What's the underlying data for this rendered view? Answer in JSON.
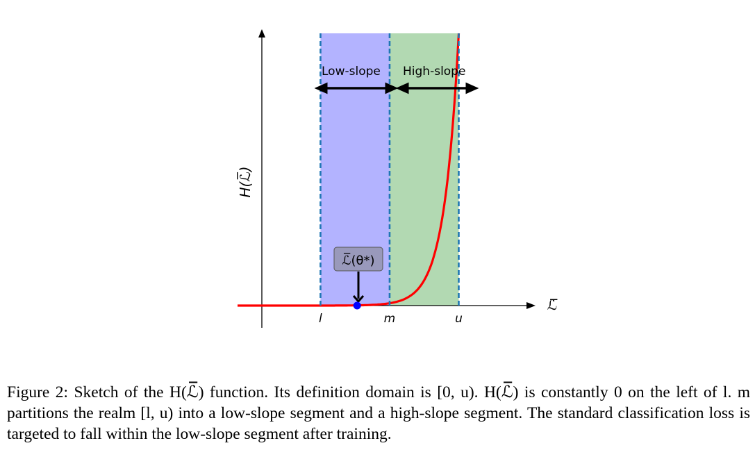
{
  "chart_data": {
    "type": "line",
    "title": "",
    "xlabel": "ℒ̅",
    "ylabel": "H(ℒ̅)",
    "x_ticks": [
      "l",
      "m",
      "u"
    ],
    "x_tick_values": [
      1,
      2,
      3
    ],
    "xlim": [
      -0.2,
      4.0
    ],
    "ylim": [
      0,
      1
    ],
    "grid": false,
    "regions": [
      {
        "name": "Low-slope",
        "from": 1,
        "to": 2,
        "color": "#b3b3ff"
      },
      {
        "name": "High-slope",
        "from": 2,
        "to": 3,
        "color": "#b2d9b2"
      }
    ],
    "boundary_line_color": "#1f77b4",
    "series": [
      {
        "color": "#ff0000",
        "description_points": [
          {
            "x": -0.2,
            "y": 0.0
          },
          {
            "x": 1.0,
            "y": 0.0
          },
          {
            "x": 1.5,
            "y": 0.0
          },
          {
            "x": 2.0,
            "y": 0.03
          },
          {
            "x": 2.5,
            "y": 0.21
          },
          {
            "x": 2.75,
            "y": 0.55
          },
          {
            "x": 2.95,
            "y": 0.9
          },
          {
            "x": 3.0,
            "y": 1.0
          }
        ]
      }
    ],
    "marker": {
      "x": 1.53,
      "y": 0.0,
      "color": "#0000ff"
    },
    "annotation": {
      "text": "ℒ̅(θ*)",
      "box_color": "#9999bb"
    }
  },
  "caption": {
    "figure_number": "Figure 2:",
    "text": "Sketch of the H(ℒ̅) function. Its definition domain is [0, u). H(ℒ̅) is constantly 0 on the left of l. m partitions the realm [l, u) into a low-slope segment and a high-slope segment. The standard classification loss is targeted to fall within the low-slope segment after training."
  }
}
